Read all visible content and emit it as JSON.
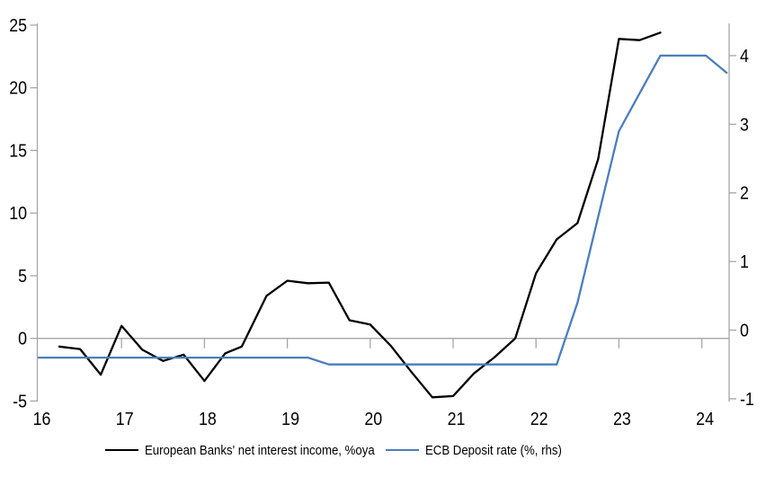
{
  "chart_data": {
    "type": "line",
    "title": "",
    "x_axis": {
      "min": 16,
      "max": 24.33,
      "ticks": [
        16,
        17,
        18,
        19,
        20,
        21,
        22,
        23,
        24
      ],
      "tick_labels": [
        "16",
        "17",
        "18",
        "19",
        "20",
        "21",
        "22",
        "23",
        "24"
      ]
    },
    "y_left_axis": {
      "min": -5.04,
      "max": 25.14,
      "ticks": [
        25,
        20,
        15,
        10,
        5,
        0,
        -5
      ],
      "tick_labels": [
        "25",
        "20",
        "15",
        "10",
        "5",
        "0",
        "-5"
      ],
      "zero_gridline": true
    },
    "y_right_axis": {
      "min": -1.04,
      "max": 4.47,
      "ticks": [
        4,
        3,
        2,
        1,
        0,
        -1
      ],
      "tick_labels": [
        "4",
        "3",
        "2",
        "1",
        "0",
        "-1"
      ]
    },
    "series": [
      {
        "name": "European Banks' net interest income, %oya",
        "axis": "left",
        "color": "#000000",
        "points": [
          [
            16.25,
            -0.65
          ],
          [
            16.5,
            -0.85
          ],
          [
            16.75,
            -2.9
          ],
          [
            17.0,
            1.0
          ],
          [
            17.25,
            -0.9
          ],
          [
            17.5,
            -1.8
          ],
          [
            17.75,
            -1.3
          ],
          [
            18.0,
            -3.4
          ],
          [
            18.25,
            -1.2
          ],
          [
            18.45,
            -0.65
          ],
          [
            18.75,
            3.4
          ],
          [
            19.0,
            4.6
          ],
          [
            19.25,
            4.4
          ],
          [
            19.5,
            4.45
          ],
          [
            19.75,
            1.45
          ],
          [
            20.0,
            1.1
          ],
          [
            20.25,
            -0.6
          ],
          [
            20.5,
            -2.7
          ],
          [
            20.75,
            -4.7
          ],
          [
            21.0,
            -4.6
          ],
          [
            21.25,
            -2.8
          ],
          [
            21.5,
            -1.5
          ],
          [
            21.75,
            0.0
          ],
          [
            22.0,
            5.2
          ],
          [
            22.25,
            7.9
          ],
          [
            22.5,
            9.2
          ],
          [
            22.75,
            14.3
          ],
          [
            23.0,
            23.9
          ],
          [
            23.25,
            23.8
          ],
          [
            23.5,
            24.4
          ]
        ]
      },
      {
        "name": "ECB Deposit rate (%, rhs)",
        "axis": "right",
        "color": "#4a7ebb",
        "points": [
          [
            16.0,
            -0.4
          ],
          [
            19.25,
            -0.4
          ],
          [
            19.5,
            -0.5
          ],
          [
            22.25,
            -0.5
          ],
          [
            22.5,
            0.4
          ],
          [
            22.75,
            1.65
          ],
          [
            23.0,
            2.9
          ],
          [
            23.25,
            3.45
          ],
          [
            23.5,
            4.0
          ],
          [
            24.05,
            4.0
          ],
          [
            24.3,
            3.75
          ]
        ]
      }
    ],
    "legend": {
      "position": "bottom",
      "items": [
        "European Banks' net interest income, %oya",
        "ECB Deposit rate (%, rhs)"
      ]
    },
    "style": {
      "axis_color": "#a6a6a6",
      "gridline_color": "#a6a6a6",
      "text_color": "#000000",
      "background": "#ffffff",
      "line_width": 2.3
    }
  }
}
